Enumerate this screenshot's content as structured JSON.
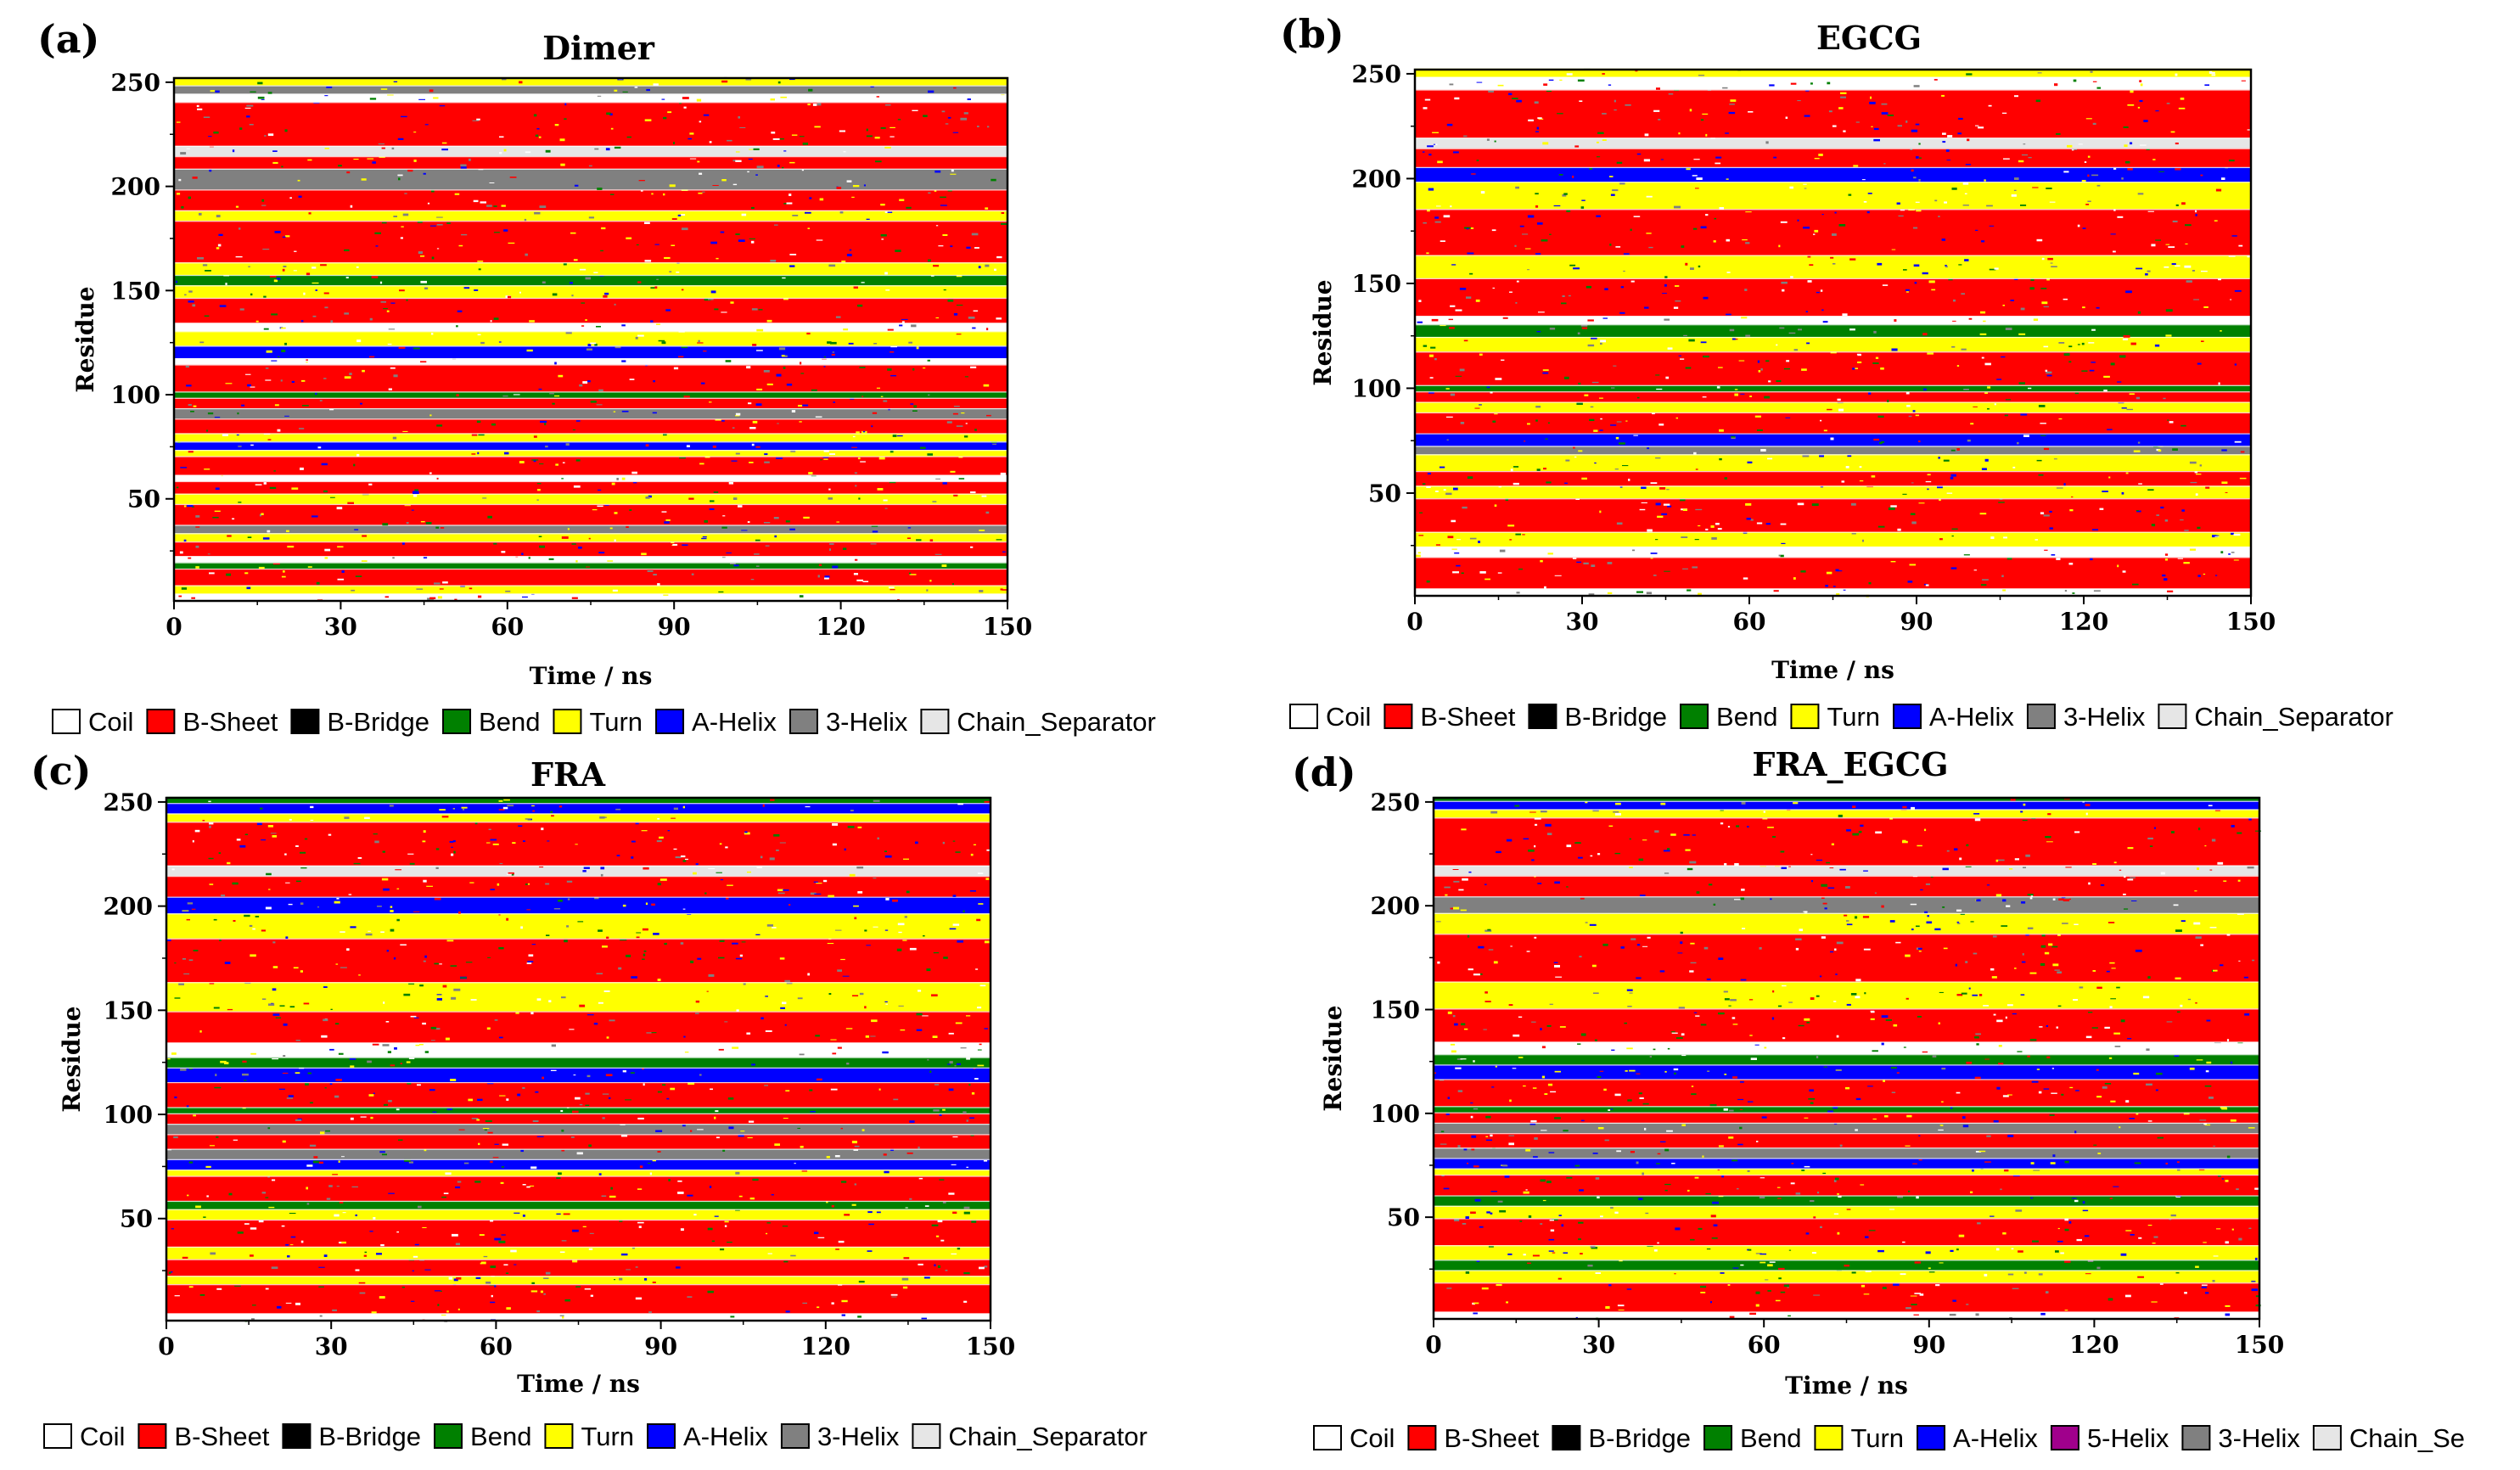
{
  "figure": {
    "description_free": true
  },
  "colors": {
    "Coil": "#ffffff",
    "B-Sheet": "#ff0000",
    "B-Bridge": "#000000",
    "Bend": "#008000",
    "Turn": "#ffff00",
    "A-Helix": "#0000ff",
    "5-Helix": "#a0008c",
    "3-Helix": "#808080",
    "Chain_Separator": "#e6e6e6"
  },
  "chart_data": [
    {
      "panel": "(a)",
      "type": "heatmap",
      "title": "Dimer",
      "xlabel": "Time / ns",
      "ylabel": "Residue",
      "xlim": [
        0,
        150
      ],
      "ylim": [
        1,
        252
      ],
      "xticks": [
        "0",
        "30",
        "60",
        "90",
        "120",
        "150"
      ],
      "yticks": [
        "50",
        "100",
        "150",
        "200",
        "250"
      ],
      "legend": [
        "Coil",
        "B-Sheet",
        "B-Bridge",
        "Bend",
        "Turn",
        "A-Helix",
        "3-Helix",
        "Chain_Separator"
      ],
      "bands": [
        {
          "r": [
            1,
            4
          ],
          "s": "Coil"
        },
        {
          "r": [
            5,
            8
          ],
          "s": "Turn"
        },
        {
          "r": [
            9,
            16
          ],
          "s": "B-Sheet"
        },
        {
          "r": [
            17,
            19
          ],
          "s": "Bend"
        },
        {
          "r": [
            20,
            22
          ],
          "s": "Coil"
        },
        {
          "r": [
            23,
            29
          ],
          "s": "B-Sheet"
        },
        {
          "r": [
            30,
            33
          ],
          "s": "Turn"
        },
        {
          "r": [
            34,
            37
          ],
          "s": "3-Helix"
        },
        {
          "r": [
            38,
            47
          ],
          "s": "B-Sheet"
        },
        {
          "r": [
            48,
            52
          ],
          "s": "Turn"
        },
        {
          "r": [
            53,
            58
          ],
          "s": "B-Sheet"
        },
        {
          "r": [
            59,
            61
          ],
          "s": "Coil"
        },
        {
          "r": [
            62,
            70
          ],
          "s": "B-Sheet"
        },
        {
          "r": [
            71,
            73
          ],
          "s": "Turn"
        },
        {
          "r": [
            74,
            77
          ],
          "s": "A-Helix"
        },
        {
          "r": [
            78,
            81
          ],
          "s": "Turn"
        },
        {
          "r": [
            82,
            88
          ],
          "s": "B-Sheet"
        },
        {
          "r": [
            89,
            93
          ],
          "s": "3-Helix"
        },
        {
          "r": [
            94,
            98
          ],
          "s": "B-Sheet"
        },
        {
          "r": [
            99,
            101
          ],
          "s": "Bend"
        },
        {
          "r": [
            102,
            114
          ],
          "s": "B-Sheet"
        },
        {
          "r": [
            115,
            117
          ],
          "s": "Coil"
        },
        {
          "r": [
            118,
            123
          ],
          "s": "A-Helix"
        },
        {
          "r": [
            124,
            130
          ],
          "s": "Turn"
        },
        {
          "r": [
            131,
            134
          ],
          "s": "Coil"
        },
        {
          "r": [
            135,
            146
          ],
          "s": "B-Sheet"
        },
        {
          "r": [
            147,
            152
          ],
          "s": "Turn"
        },
        {
          "r": [
            153,
            157
          ],
          "s": "Bend"
        },
        {
          "r": [
            158,
            163
          ],
          "s": "Turn"
        },
        {
          "r": [
            164,
            183
          ],
          "s": "B-Sheet"
        },
        {
          "r": [
            184,
            188
          ],
          "s": "Turn"
        },
        {
          "r": [
            189,
            198
          ],
          "s": "B-Sheet"
        },
        {
          "r": [
            199,
            208
          ],
          "s": "3-Helix"
        },
        {
          "r": [
            209,
            214
          ],
          "s": "B-Sheet"
        },
        {
          "r": [
            215,
            219
          ],
          "s": "Chain_Separator"
        },
        {
          "r": [
            220,
            240
          ],
          "s": "B-Sheet"
        },
        {
          "r": [
            241,
            244
          ],
          "s": "Coil"
        },
        {
          "r": [
            245,
            248
          ],
          "s": "3-Helix"
        },
        {
          "r": [
            249,
            252
          ],
          "s": "Turn"
        }
      ]
    },
    {
      "panel": "(b)",
      "type": "heatmap",
      "title": "EGCG",
      "xlabel": "Time / ns",
      "ylabel": "Residue",
      "xlim": [
        0,
        150
      ],
      "ylim": [
        1,
        252
      ],
      "xticks": [
        "0",
        "30",
        "60",
        "90",
        "120",
        "150"
      ],
      "yticks": [
        "50",
        "100",
        "150",
        "200",
        "250"
      ],
      "legend": [
        "Coil",
        "B-Sheet",
        "B-Bridge",
        "Bend",
        "Turn",
        "A-Helix",
        "3-Helix",
        "Chain_Separator"
      ],
      "bands": [
        {
          "r": [
            1,
            4
          ],
          "s": "Coil"
        },
        {
          "r": [
            5,
            19
          ],
          "s": "B-Sheet"
        },
        {
          "r": [
            20,
            24
          ],
          "s": "Coil"
        },
        {
          "r": [
            25,
            31
          ],
          "s": "Turn"
        },
        {
          "r": [
            32,
            47
          ],
          "s": "B-Sheet"
        },
        {
          "r": [
            48,
            53
          ],
          "s": "Turn"
        },
        {
          "r": [
            54,
            60
          ],
          "s": "B-Sheet"
        },
        {
          "r": [
            61,
            68
          ],
          "s": "Turn"
        },
        {
          "r": [
            69,
            72
          ],
          "s": "3-Helix"
        },
        {
          "r": [
            73,
            78
          ],
          "s": "A-Helix"
        },
        {
          "r": [
            79,
            88
          ],
          "s": "B-Sheet"
        },
        {
          "r": [
            89,
            93
          ],
          "s": "Turn"
        },
        {
          "r": [
            94,
            98
          ],
          "s": "B-Sheet"
        },
        {
          "r": [
            99,
            101
          ],
          "s": "Bend"
        },
        {
          "r": [
            102,
            117
          ],
          "s": "B-Sheet"
        },
        {
          "r": [
            118,
            124
          ],
          "s": "Turn"
        },
        {
          "r": [
            125,
            130
          ],
          "s": "Bend"
        },
        {
          "r": [
            131,
            134
          ],
          "s": "Coil"
        },
        {
          "r": [
            135,
            152
          ],
          "s": "B-Sheet"
        },
        {
          "r": [
            153,
            163
          ],
          "s": "Turn"
        },
        {
          "r": [
            164,
            185
          ],
          "s": "B-Sheet"
        },
        {
          "r": [
            186,
            198
          ],
          "s": "Turn"
        },
        {
          "r": [
            199,
            205
          ],
          "s": "A-Helix"
        },
        {
          "r": [
            206,
            214
          ],
          "s": "B-Sheet"
        },
        {
          "r": [
            215,
            219
          ],
          "s": "Chain_Separator"
        },
        {
          "r": [
            220,
            242
          ],
          "s": "B-Sheet"
        },
        {
          "r": [
            243,
            248
          ],
          "s": "Coil"
        },
        {
          "r": [
            249,
            252
          ],
          "s": "Turn"
        }
      ]
    },
    {
      "panel": "(c)",
      "type": "heatmap",
      "title": "FRA",
      "xlabel": "Time / ns",
      "ylabel": "Residue",
      "xlim": [
        0,
        150
      ],
      "ylim": [
        1,
        252
      ],
      "xticks": [
        "0",
        "30",
        "60",
        "90",
        "120",
        "150"
      ],
      "yticks": [
        "50",
        "100",
        "150",
        "200",
        "250"
      ],
      "legend": [
        "Coil",
        "B-Sheet",
        "B-Bridge",
        "Bend",
        "Turn",
        "A-Helix",
        "3-Helix",
        "Chain_Separator"
      ],
      "bands": [
        {
          "r": [
            1,
            4
          ],
          "s": "Coil"
        },
        {
          "r": [
            5,
            18
          ],
          "s": "B-Sheet"
        },
        {
          "r": [
            19,
            22
          ],
          "s": "Turn"
        },
        {
          "r": [
            23,
            30
          ],
          "s": "B-Sheet"
        },
        {
          "r": [
            31,
            36
          ],
          "s": "Turn"
        },
        {
          "r": [
            37,
            49
          ],
          "s": "B-Sheet"
        },
        {
          "r": [
            50,
            54
          ],
          "s": "Turn"
        },
        {
          "r": [
            55,
            58
          ],
          "s": "Bend"
        },
        {
          "r": [
            59,
            70
          ],
          "s": "B-Sheet"
        },
        {
          "r": [
            71,
            73
          ],
          "s": "Turn"
        },
        {
          "r": [
            74,
            78
          ],
          "s": "A-Helix"
        },
        {
          "r": [
            79,
            83
          ],
          "s": "3-Helix"
        },
        {
          "r": [
            84,
            90
          ],
          "s": "B-Sheet"
        },
        {
          "r": [
            91,
            95
          ],
          "s": "3-Helix"
        },
        {
          "r": [
            96,
            100
          ],
          "s": "B-Sheet"
        },
        {
          "r": [
            101,
            103
          ],
          "s": "Bend"
        },
        {
          "r": [
            104,
            115
          ],
          "s": "B-Sheet"
        },
        {
          "r": [
            116,
            122
          ],
          "s": "A-Helix"
        },
        {
          "r": [
            123,
            127
          ],
          "s": "Bend"
        },
        {
          "r": [
            128,
            134
          ],
          "s": "Coil"
        },
        {
          "r": [
            135,
            149
          ],
          "s": "B-Sheet"
        },
        {
          "r": [
            150,
            163
          ],
          "s": "Turn"
        },
        {
          "r": [
            164,
            184
          ],
          "s": "B-Sheet"
        },
        {
          "r": [
            185,
            196
          ],
          "s": "Turn"
        },
        {
          "r": [
            197,
            204
          ],
          "s": "A-Helix"
        },
        {
          "r": [
            205,
            214
          ],
          "s": "B-Sheet"
        },
        {
          "r": [
            215,
            219
          ],
          "s": "Chain_Separator"
        },
        {
          "r": [
            220,
            240
          ],
          "s": "B-Sheet"
        },
        {
          "r": [
            241,
            244
          ],
          "s": "Turn"
        },
        {
          "r": [
            245,
            249
          ],
          "s": "A-Helix"
        },
        {
          "r": [
            250,
            252
          ],
          "s": "Bend"
        }
      ]
    },
    {
      "panel": "(d)",
      "type": "heatmap",
      "title": "FRA_EGCG",
      "xlabel": "Time / ns",
      "ylabel": "Residue",
      "xlim": [
        0,
        150
      ],
      "ylim": [
        1,
        252
      ],
      "xticks": [
        "0",
        "30",
        "60",
        "90",
        "120",
        "150"
      ],
      "yticks": [
        "50",
        "100",
        "150",
        "200",
        "250"
      ],
      "legend": [
        "Coil",
        "B-Sheet",
        "B-Bridge",
        "Bend",
        "Turn",
        "A-Helix",
        "5-Helix",
        "3-Helix",
        "Chain_Se"
      ],
      "bands": [
        {
          "r": [
            1,
            4
          ],
          "s": "Coil"
        },
        {
          "r": [
            5,
            18
          ],
          "s": "B-Sheet"
        },
        {
          "r": [
            19,
            24
          ],
          "s": "Turn"
        },
        {
          "r": [
            25,
            29
          ],
          "s": "Bend"
        },
        {
          "r": [
            30,
            36
          ],
          "s": "Turn"
        },
        {
          "r": [
            37,
            49
          ],
          "s": "B-Sheet"
        },
        {
          "r": [
            50,
            55
          ],
          "s": "Turn"
        },
        {
          "r": [
            56,
            60
          ],
          "s": "Bend"
        },
        {
          "r": [
            61,
            70
          ],
          "s": "B-Sheet"
        },
        {
          "r": [
            71,
            73
          ],
          "s": "Turn"
        },
        {
          "r": [
            74,
            78
          ],
          "s": "A-Helix"
        },
        {
          "r": [
            79,
            83
          ],
          "s": "3-Helix"
        },
        {
          "r": [
            84,
            90
          ],
          "s": "B-Sheet"
        },
        {
          "r": [
            91,
            95
          ],
          "s": "3-Helix"
        },
        {
          "r": [
            96,
            100
          ],
          "s": "B-Sheet"
        },
        {
          "r": [
            101,
            103
          ],
          "s": "Bend"
        },
        {
          "r": [
            104,
            116
          ],
          "s": "B-Sheet"
        },
        {
          "r": [
            117,
            123
          ],
          "s": "A-Helix"
        },
        {
          "r": [
            124,
            128
          ],
          "s": "Bend"
        },
        {
          "r": [
            129,
            134
          ],
          "s": "Coil"
        },
        {
          "r": [
            135,
            150
          ],
          "s": "B-Sheet"
        },
        {
          "r": [
            151,
            163
          ],
          "s": "Turn"
        },
        {
          "r": [
            164,
            186
          ],
          "s": "B-Sheet"
        },
        {
          "r": [
            187,
            196
          ],
          "s": "Turn"
        },
        {
          "r": [
            197,
            204
          ],
          "s": "3-Helix"
        },
        {
          "r": [
            205,
            214
          ],
          "s": "B-Sheet"
        },
        {
          "r": [
            215,
            219
          ],
          "s": "Chain_Separator"
        },
        {
          "r": [
            220,
            242
          ],
          "s": "B-Sheet"
        },
        {
          "r": [
            243,
            246
          ],
          "s": "Turn"
        },
        {
          "r": [
            247,
            250
          ],
          "s": "A-Helix"
        },
        {
          "r": [
            251,
            252
          ],
          "s": "Bend"
        }
      ]
    }
  ]
}
